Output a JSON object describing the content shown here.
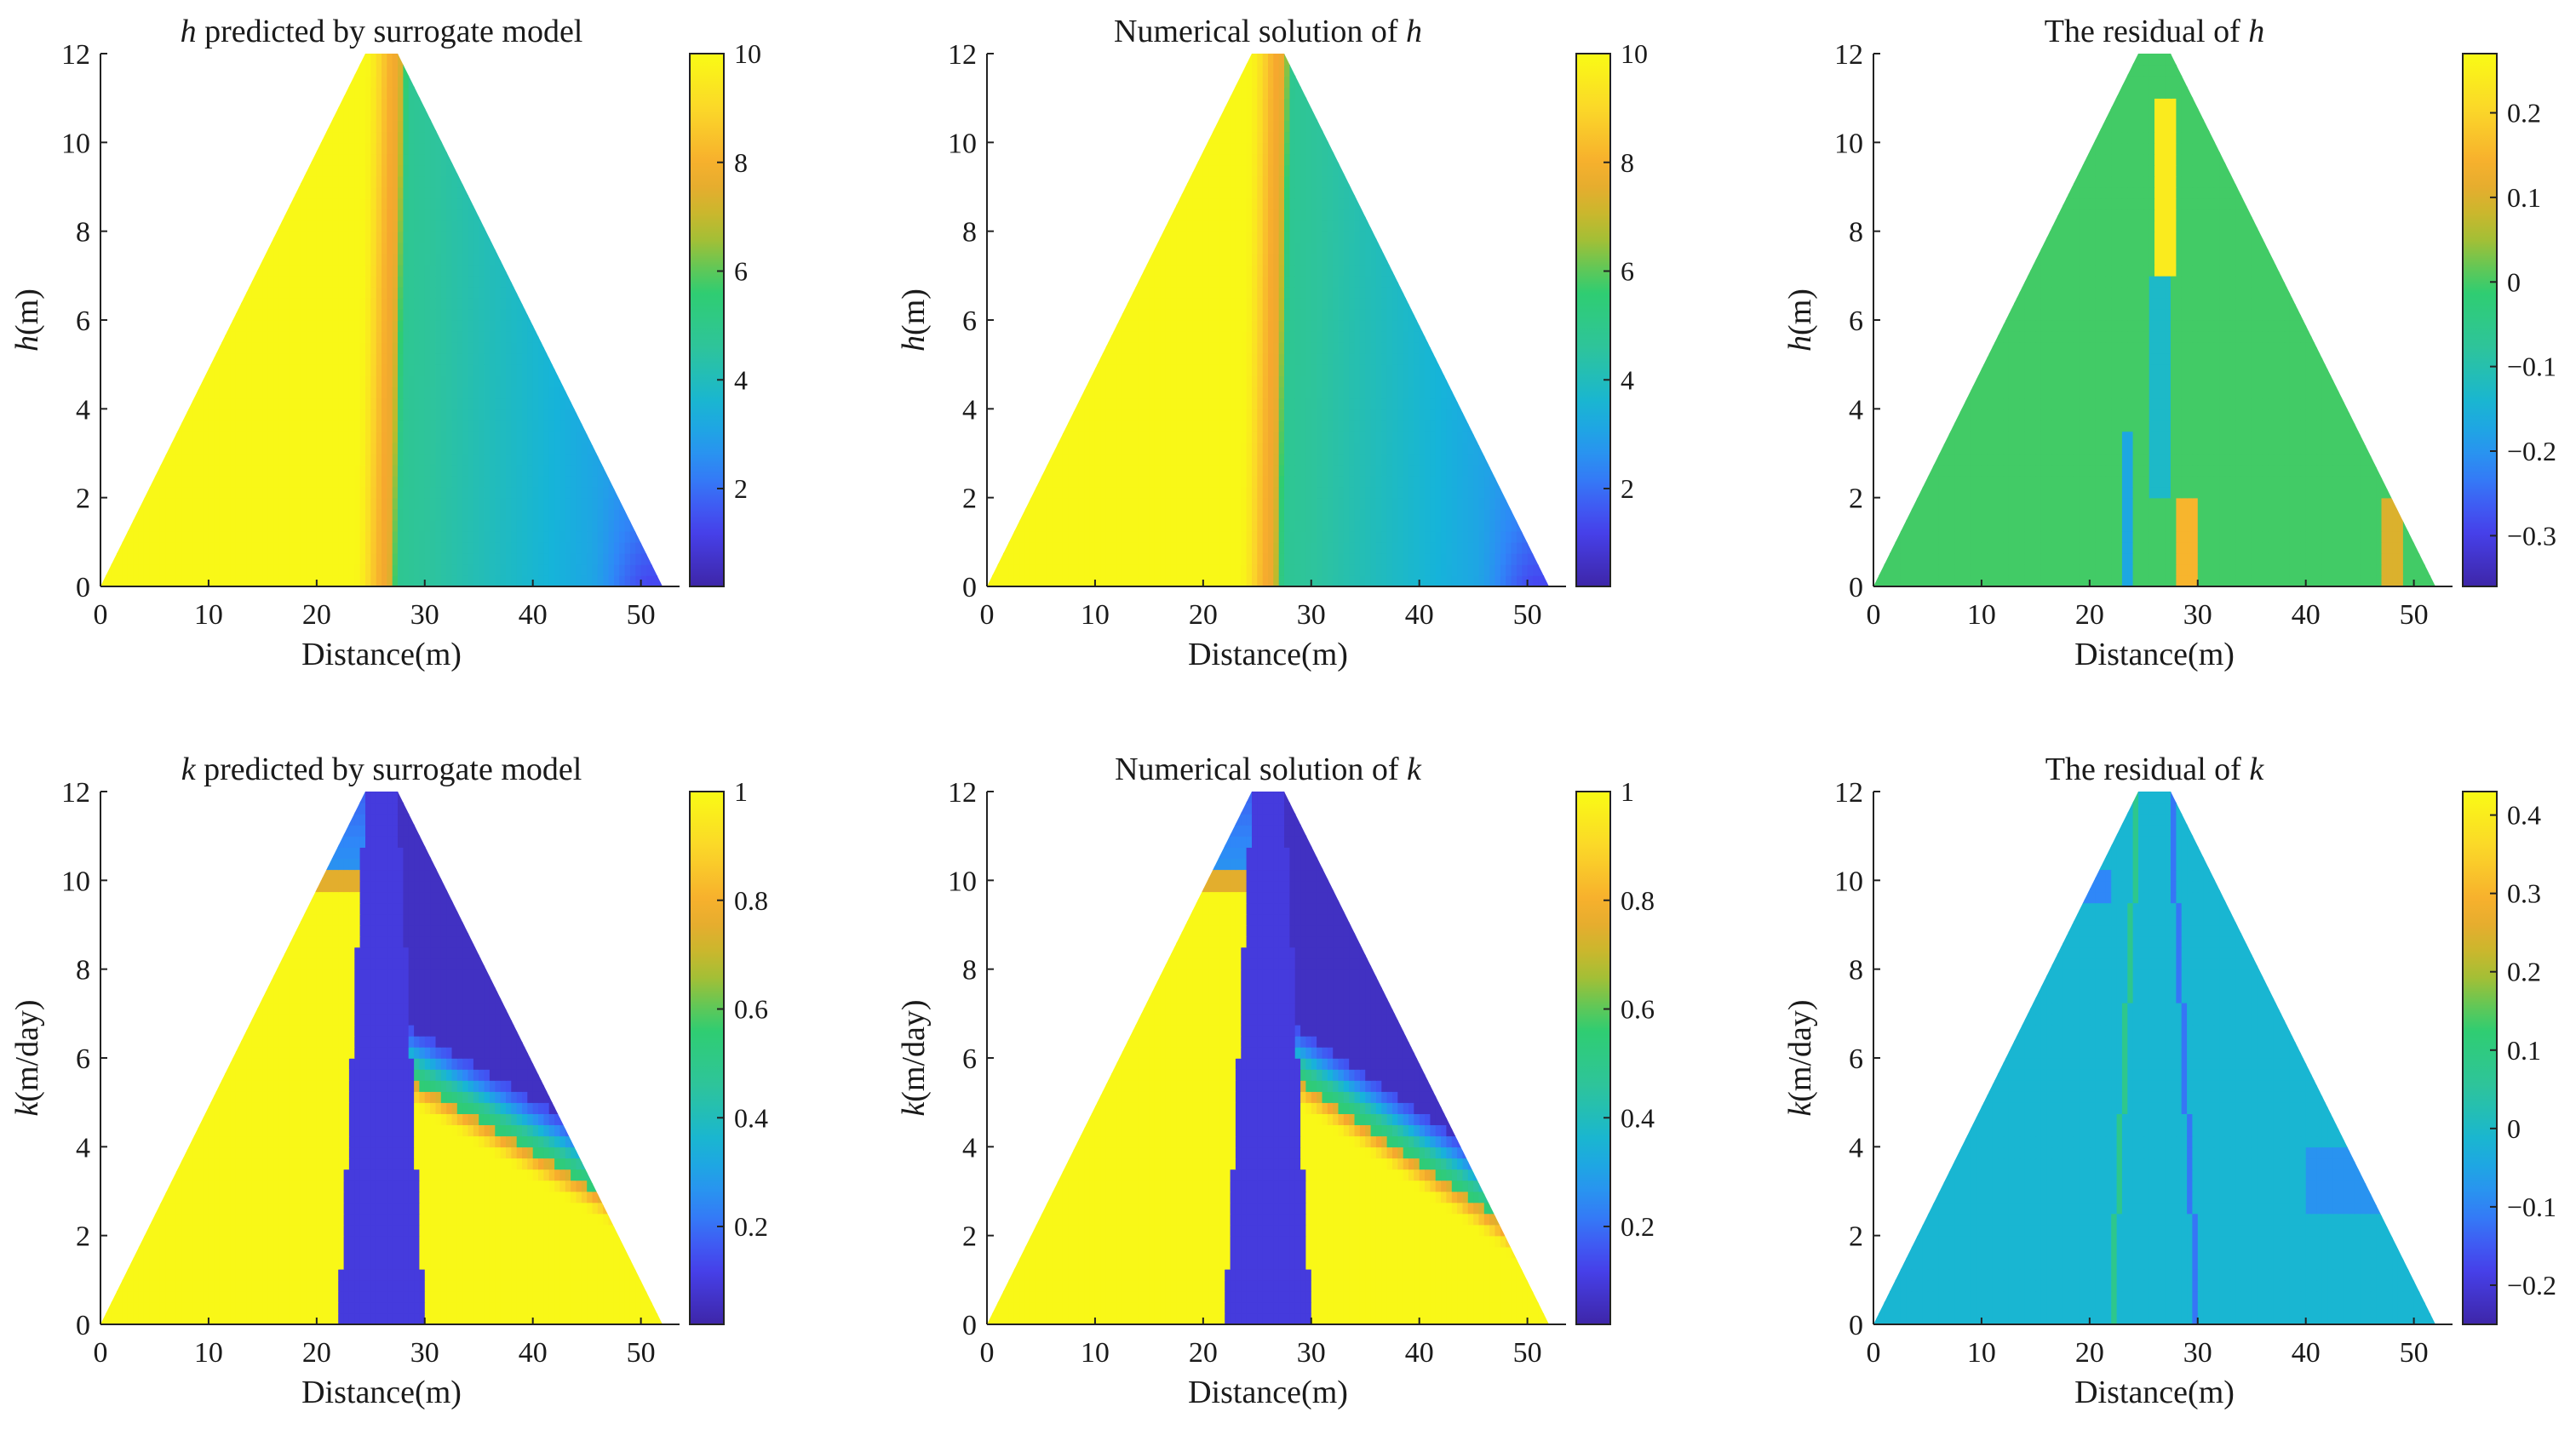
{
  "figure": {
    "colormap": [
      "#3e26a8",
      "#4743f0",
      "#2f88f8",
      "#16b4d9",
      "#2ec49c",
      "#2fcd70",
      "#b7bd2c",
      "#f6a82e",
      "#fbd52a",
      "#f9fb15"
    ]
  },
  "chart_data": [
    {
      "type": "heatmap",
      "title_italic": "h",
      "title_rest": " predicted by surrogate model",
      "xlabel": "Distance(m)",
      "ylabel_italic": "h",
      "ylabel_rest": "(m)",
      "xlim": [
        0,
        52
      ],
      "ylim": [
        0,
        12
      ],
      "xticks": [
        "0",
        "10",
        "20",
        "30",
        "40",
        "50"
      ],
      "yticks": [
        "0",
        "2",
        "4",
        "6",
        "8",
        "10",
        "12"
      ],
      "domain": "triangle",
      "colorbar": {
        "min": 0.2,
        "max": 10,
        "ticks": [
          "2",
          "4",
          "6",
          "8",
          "10"
        ]
      },
      "field": "head",
      "front_x_at_bottom": 26.5,
      "front_x_at_top": 27.5
    },
    {
      "type": "heatmap",
      "title_italic": "",
      "title_rest": "Numerical solution of ",
      "title_italic_end": "h",
      "xlabel": "Distance(m)",
      "ylabel_italic": "h",
      "ylabel_rest": "(m)",
      "xlim": [
        0,
        52
      ],
      "ylim": [
        0,
        12
      ],
      "xticks": [
        "0",
        "10",
        "20",
        "30",
        "40",
        "50"
      ],
      "yticks": [
        "0",
        "2",
        "4",
        "6",
        "8",
        "10",
        "12"
      ],
      "domain": "triangle",
      "colorbar": {
        "min": 0.2,
        "max": 10,
        "ticks": [
          "2",
          "4",
          "6",
          "8",
          "10"
        ]
      },
      "field": "head",
      "front_x_at_bottom": 26.3,
      "front_x_at_top": 27.2
    },
    {
      "type": "heatmap",
      "title_italic": "",
      "title_rest": "The residual of ",
      "title_italic_end": "h",
      "xlabel": "Distance(m)",
      "ylabel_italic": "h",
      "ylabel_rest": "(m)",
      "xlim": [
        0,
        52
      ],
      "ylim": [
        0,
        12
      ],
      "xticks": [
        "0",
        "10",
        "20",
        "30",
        "40",
        "50"
      ],
      "yticks": [
        "0",
        "2",
        "4",
        "6",
        "8",
        "10",
        "12"
      ],
      "domain": "triangle",
      "colorbar": {
        "min": -0.36,
        "max": 0.27,
        "ticks": [
          "−0.3",
          "−0.2",
          "−0.1",
          "0",
          "0.1",
          "0.2"
        ],
        "tick_values": [
          -0.3,
          -0.2,
          -0.1,
          0,
          0.1,
          0.2
        ]
      },
      "field": "residual-h",
      "background_value": 0.0
    },
    {
      "type": "heatmap",
      "title_italic": "k",
      "title_rest": " predicted by surrogate model",
      "xlabel": "Distance(m)",
      "ylabel_italic": "k",
      "ylabel_rest": "(m/day)",
      "xlim": [
        0,
        52
      ],
      "ylim": [
        0,
        12
      ],
      "xticks": [
        "0",
        "10",
        "20",
        "30",
        "40",
        "50"
      ],
      "yticks": [
        "0",
        "2",
        "4",
        "6",
        "8",
        "10",
        "12"
      ],
      "domain": "triangle",
      "colorbar": {
        "min": 0.02,
        "max": 1,
        "ticks": [
          "0.2",
          "0.4",
          "0.6",
          "0.8",
          "1"
        ]
      },
      "field": "conductivity",
      "core_x_bottom": [
        22,
        30
      ],
      "core_x_top": [
        24.5,
        27.5
      ],
      "upper_left_transition_y": 10.2,
      "right_transition_y": [
        5.5,
        3.0
      ]
    },
    {
      "type": "heatmap",
      "title_italic": "",
      "title_rest": "Numerical solution of ",
      "title_italic_end": "k",
      "xlabel": "Distance(m)",
      "ylabel_italic": "k",
      "ylabel_rest": "(m/day)",
      "xlim": [
        0,
        52
      ],
      "ylim": [
        0,
        12
      ],
      "xticks": [
        "0",
        "10",
        "20",
        "30",
        "40",
        "50"
      ],
      "yticks": [
        "0",
        "2",
        "4",
        "6",
        "8",
        "10",
        "12"
      ],
      "domain": "triangle",
      "colorbar": {
        "min": 0.02,
        "max": 1,
        "ticks": [
          "0.2",
          "0.4",
          "0.6",
          "0.8",
          "1"
        ]
      },
      "field": "conductivity",
      "core_x_bottom": [
        22,
        30
      ],
      "core_x_top": [
        24.5,
        27.5
      ],
      "upper_left_transition_y": 10.2,
      "right_transition_y": [
        5.5,
        2.6
      ]
    },
    {
      "type": "heatmap",
      "title_italic": "",
      "title_rest": "The residual of ",
      "title_italic_end": "k",
      "xlabel": "Distance(m)",
      "ylabel_italic": "k",
      "ylabel_rest": "(m/day)",
      "xlim": [
        0,
        52
      ],
      "ylim": [
        0,
        12
      ],
      "xticks": [
        "0",
        "10",
        "20",
        "30",
        "40",
        "50"
      ],
      "yticks": [
        "0",
        "2",
        "4",
        "6",
        "8",
        "10",
        "12"
      ],
      "domain": "triangle",
      "colorbar": {
        "min": -0.25,
        "max": 0.43,
        "ticks": [
          "−0.2",
          "−0.1",
          "0",
          "0.1",
          "0.2",
          "0.3",
          "0.4"
        ],
        "tick_values": [
          -0.2,
          -0.1,
          0,
          0.1,
          0.2,
          0.3,
          0.4
        ]
      },
      "field": "residual-k",
      "background_value": 0.0
    }
  ]
}
